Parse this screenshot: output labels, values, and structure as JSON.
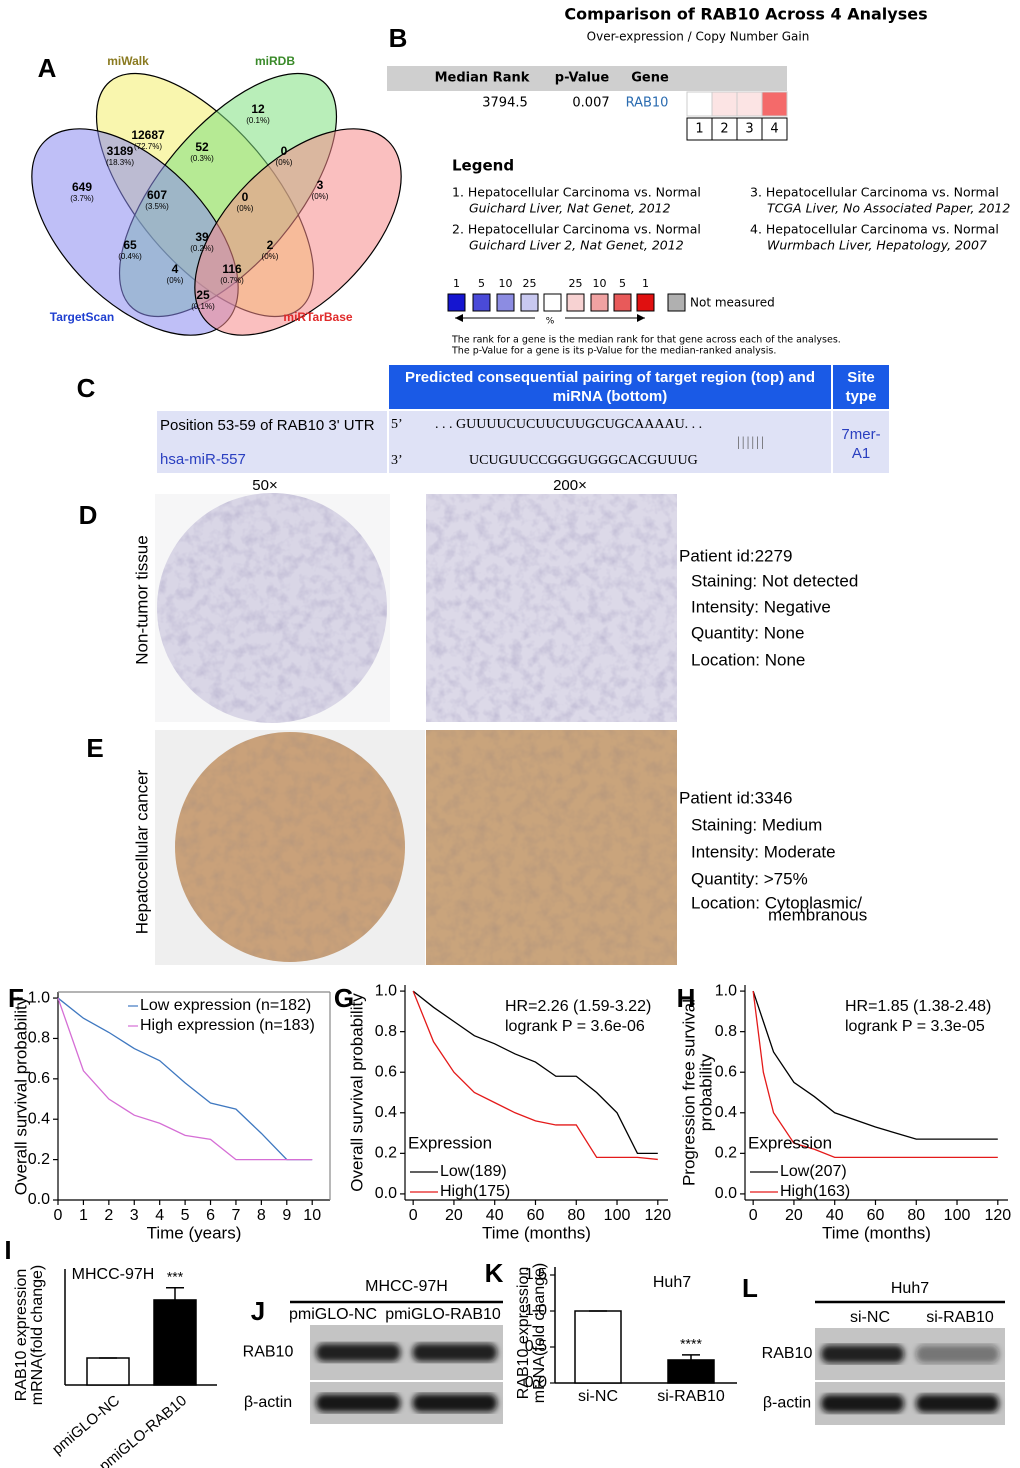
{
  "panel_labels": [
    "A",
    "B",
    "C",
    "D",
    "E",
    "F",
    "G",
    "H",
    "I",
    "J",
    "K",
    "L"
  ],
  "venn": {
    "sets": [
      {
        "name": "miWalk",
        "color": "#f4ef6c",
        "label_color": "#8a7a20"
      },
      {
        "name": "miRDB",
        "color": "#7fe07f",
        "label_color": "#3a8a2a"
      },
      {
        "name": "TargetScan",
        "color": "#8a8af0",
        "label_color": "#1f3fd0"
      },
      {
        "name": "miRTarBase",
        "color": "#f58a8a",
        "label_color": "#e02a2a"
      }
    ],
    "regions": [
      {
        "count": 12687,
        "percent": "(72.7%)"
      },
      {
        "count": 12,
        "percent": "(0.1%)"
      },
      {
        "count": 3189,
        "percent": "(18.3%)"
      },
      {
        "count": 52,
        "percent": "(0.3%)"
      },
      {
        "count": 0,
        "percent": "(0%)"
      },
      {
        "count": 649,
        "percent": "(3.7%)"
      },
      {
        "count": 607,
        "percent": "(3.5%)"
      },
      {
        "count": 0,
        "percent": "(0%)"
      },
      {
        "count": 3,
        "percent": "(0%)"
      },
      {
        "count": 65,
        "percent": "(0.4%)"
      },
      {
        "count": 39,
        "percent": "(0.2%)"
      },
      {
        "count": 2,
        "percent": "(0%)"
      },
      {
        "count": 4,
        "percent": "(0%)"
      },
      {
        "count": 116,
        "percent": "(0.7%)"
      },
      {
        "count": 25,
        "percent": "(0.1%)"
      }
    ]
  },
  "oncomine": {
    "title": "Comparison of RAB10 Across 4 Analyses",
    "subtitle": "Over-expression / Copy Number Gain",
    "columns": [
      "Median Rank",
      "p-Value",
      "Gene"
    ],
    "median_rank": 3794.5,
    "p_value": 0.007,
    "gene": "RAB10",
    "cell_labels": [
      "1",
      "2",
      "3",
      "4"
    ],
    "cell_colors": [
      "#ffffff",
      "#fce4e4",
      "#fce4e4",
      "#f46a6a"
    ],
    "legend_title": "Legend",
    "legend": [
      [
        "1. Hepatocellular Carcinoma vs. Normal",
        "Guichard Liver, Nat Genet, 2012"
      ],
      [
        "2. Hepatocellular Carcinoma vs. Normal",
        "Guichard Liver 2, Nat Genet, 2012"
      ],
      [
        "3. Hepatocellular Carcinoma vs. Normal",
        "TCGA Liver, No Associated Paper, 2012"
      ],
      [
        "4. Hepatocellular Carcinoma vs. Normal",
        "Wurmbach Liver, Hepatology, 2007"
      ]
    ],
    "scale_labels": [
      "1",
      "5",
      "10",
      "25",
      "25",
      "10",
      "5",
      "1"
    ],
    "scale_colors": [
      "#1515d0",
      "#4a4ad8",
      "#8c8ce2",
      "#c8c8f0",
      "#ffffff",
      "#f7d2d2",
      "#f0a2a2",
      "#e85a5a",
      "#e01010"
    ],
    "scale_unit": "%",
    "not_measured": "Not measured",
    "not_measured_color": "#b0b0b0",
    "notes": [
      "The rank for a gene is the median rank for that gene across each of the analyses.",
      "The p-Value for a gene is its p-Value for the median-ranked analysis."
    ]
  },
  "table": {
    "header": [
      "Predicted consequential pairing of target region (top) and miRNA (bottom)",
      "Site type"
    ],
    "target": "Position 53-59 of RAB10 3' UTR",
    "mirna": "hsa-miR-557",
    "target_end": "5’",
    "target_seq": ". . . GUUUUCUCUUCUUGCUGCAAAAU. . .",
    "pairing": "||||||",
    "mirna_end": "3’",
    "mirna_seq": "UCUGUUCCGGGUGGGCACGUUUG",
    "site_type": "7mer-A1"
  },
  "ihc": {
    "magnifications": [
      "50×",
      "200×"
    ],
    "rows": [
      {
        "label": "Non-tumor tissue",
        "patient": "Patient id:2279",
        "details": [
          "Staining: Not detected",
          "Intensity: Negative",
          "Quantity: None",
          "Location: None"
        ]
      },
      {
        "label": "Hepatocellular cancer",
        "patient": "Patient id:3346",
        "details": [
          "Staining: Medium",
          "Intensity: Moderate",
          "Quantity: >75%",
          "Location: Cytoplasmic/",
          "membranous"
        ]
      }
    ]
  },
  "chart_data": [
    {
      "type": "line",
      "xlabel": "Time (years)",
      "ylabel": [
        "Overall survival probability"
      ],
      "x": [
        0,
        1,
        2,
        3,
        4,
        5,
        6,
        7,
        8,
        9,
        10
      ],
      "xlim": [
        0,
        10.7
      ],
      "xticks": [
        0,
        1,
        2,
        3,
        4,
        5,
        6,
        7,
        8,
        9,
        10
      ],
      "ylim": [
        0,
        1.03
      ],
      "yticks": [
        {
          "value": 0,
          "label": "0.0"
        },
        0.2,
        0.4,
        0.6,
        0.8,
        {
          "value": 1,
          "label": "1.0"
        }
      ],
      "legend": "upper right",
      "series": [
        {
          "name": "Low expression (n=182)",
          "color": "#3f78c0",
          "values": [
            1.0,
            0.9,
            0.83,
            0.75,
            0.69,
            0.58,
            0.48,
            0.45,
            0.33,
            0.2,
            0.2
          ]
        },
        {
          "name": "High expression (n=183)",
          "color": "#d56ed5",
          "values": [
            1.0,
            0.64,
            0.5,
            0.42,
            0.38,
            0.32,
            0.3,
            0.2,
            0.2,
            0.2,
            0.2
          ]
        }
      ]
    },
    {
      "type": "line",
      "xlabel": "Time (months)",
      "ylabel": [
        "Overall survival probability"
      ],
      "x": [
        0,
        10,
        20,
        30,
        40,
        50,
        60,
        70,
        80,
        90,
        100,
        110,
        120
      ],
      "xlim": [
        -4,
        125
      ],
      "xticks": [
        0,
        20,
        40,
        60,
        80,
        100,
        120
      ],
      "ylim": [
        -0.03,
        1.03
      ],
      "yticks": [
        {
          "value": 0,
          "label": "0.0"
        },
        0.2,
        0.4,
        0.6,
        0.8,
        {
          "value": 1,
          "label": "1.0"
        }
      ],
      "legend": "lower left",
      "legend_title": "Expression",
      "annotations": [
        "HR=2.26 (1.59-3.22)",
        "logrank P = 3.6e-06"
      ],
      "series": [
        {
          "name": "Low(189)",
          "color": "#000000",
          "values": [
            1.0,
            0.92,
            0.85,
            0.78,
            0.74,
            0.69,
            0.65,
            0.58,
            0.58,
            0.5,
            0.4,
            0.2,
            0.2
          ]
        },
        {
          "name": "High(175)",
          "color": "#e41a1a",
          "values": [
            1.0,
            0.75,
            0.6,
            0.5,
            0.45,
            0.4,
            0.36,
            0.34,
            0.34,
            0.18,
            0.18,
            0.18,
            0.17
          ]
        }
      ]
    },
    {
      "type": "line",
      "xlabel": "Time (months)",
      "ylabel": [
        "Progression free survival",
        "probability"
      ],
      "x": [
        0,
        5,
        10,
        20,
        30,
        40,
        60,
        80,
        100,
        120
      ],
      "xlim": [
        -4,
        125
      ],
      "xticks": [
        0,
        20,
        40,
        60,
        80,
        100,
        120
      ],
      "ylim": [
        -0.03,
        1.03
      ],
      "yticks": [
        {
          "value": 0,
          "label": "0.0"
        },
        0.2,
        0.4,
        0.6,
        0.8,
        {
          "value": 1,
          "label": "1.0"
        }
      ],
      "legend": "lower left",
      "legend_title": "Expression",
      "annotations": [
        "HR=1.85 (1.38-2.48)",
        "logrank P = 3.3e-05"
      ],
      "series": [
        {
          "name": "Low(207)",
          "color": "#000000",
          "values": [
            1.0,
            0.85,
            0.7,
            0.55,
            0.48,
            0.4,
            0.33,
            0.27,
            0.27,
            0.27
          ]
        },
        {
          "name": "High(163)",
          "color": "#e41a1a",
          "values": [
            1.0,
            0.6,
            0.4,
            0.25,
            0.22,
            0.18,
            0.18,
            0.18,
            0.18,
            0.18
          ]
        }
      ]
    },
    {
      "type": "bar",
      "title": "MHCC-97H",
      "ylabel": [
        "RAB10 expression",
        "mRNA(fold change)"
      ],
      "categories": [
        "pmiGLO-NC",
        "pmiGLO-RAB10"
      ],
      "values": [
        1,
        3.15
      ],
      "errors": [
        0,
        0.45
      ],
      "colors": [
        "#ffffff",
        "#000000"
      ],
      "ylim": [
        0,
        4
      ],
      "significance": "***"
    },
    {
      "type": "bar",
      "title": "Huh7",
      "ylabel": [
        "RAB10 expression",
        "mRNA(fold change)"
      ],
      "categories": [
        "si-NC",
        "si-RAB10"
      ],
      "values": [
        1,
        0.32
      ],
      "errors": [
        0,
        0.07
      ],
      "colors": [
        "#ffffff",
        "#000000"
      ],
      "ylim": [
        0,
        1.5
      ],
      "yticks": [
        {
          "value": 0,
          "label": "0.0"
        },
        0.5,
        {
          "value": 1,
          "label": "1.0"
        },
        1.5
      ],
      "significance": "****"
    }
  ],
  "western": [
    {
      "title": "MHCC-97H",
      "lanes": [
        "pmiGLO-NC",
        "pmiGLO-RAB10"
      ],
      "rows": [
        "RAB10",
        "β-actin"
      ]
    },
    {
      "title": "Huh7",
      "lanes": [
        "si-NC",
        "si-RAB10"
      ],
      "rows": [
        "RAB10",
        "β-actin"
      ]
    }
  ]
}
